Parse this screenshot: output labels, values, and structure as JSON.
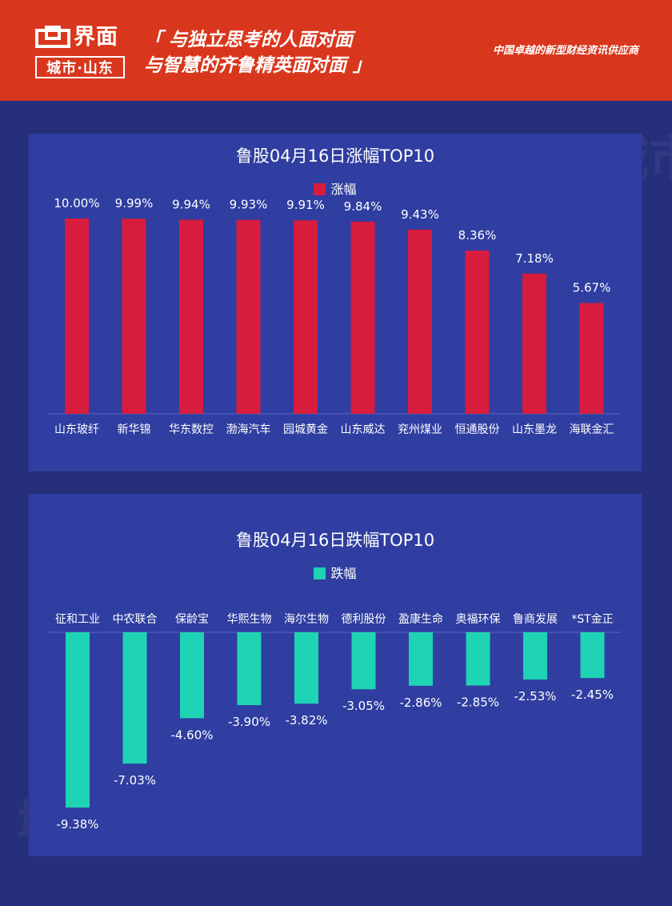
{
  "header": {
    "brand": "界面",
    "brand_sub": "城市·山东",
    "slogan_line1": "「 与独立思考的人面对面",
    "slogan_line2": "与智慧的齐鲁精英面对面 」",
    "tagline": "中国卓越的新型财经资讯供应商",
    "watermark": "界面 城市·山东"
  },
  "chart_data": [
    {
      "type": "bar",
      "title": "鲁股04月16日涨幅TOP10",
      "legend": "涨幅",
      "color": "#d71c3d",
      "categories": [
        "山东玻纤",
        "新华锦",
        "华东数控",
        "渤海汽车",
        "园城黄金",
        "山东威达",
        "兖州煤业",
        "恒通股份",
        "山东墨龙",
        "海联金汇"
      ],
      "values": [
        10.0,
        9.99,
        9.94,
        9.93,
        9.91,
        9.84,
        9.43,
        8.36,
        7.18,
        5.67
      ],
      "labels": [
        "10.00%",
        "9.99%",
        "9.94%",
        "9.93%",
        "9.91%",
        "9.84%",
        "9.43%",
        "8.36%",
        "7.18%",
        "5.67%"
      ],
      "ylim": [
        0,
        10
      ]
    },
    {
      "type": "bar",
      "title": "鲁股04月16日跌幅TOP10",
      "legend": "跌幅",
      "color": "#1fd3b5",
      "categories": [
        "征和工业",
        "中农联合",
        "保龄宝",
        "华熙生物",
        "海尔生物",
        "德利股份",
        "盈康生命",
        "奥福环保",
        "鲁商发展",
        "*ST金正"
      ],
      "values": [
        -9.38,
        -7.03,
        -4.6,
        -3.9,
        -3.82,
        -3.05,
        -2.86,
        -2.85,
        -2.53,
        -2.45
      ],
      "labels": [
        "-9.38%",
        "-7.03%",
        "-4.60%",
        "-3.90%",
        "-3.82%",
        "-3.05%",
        "-2.86%",
        "-2.85%",
        "-2.53%",
        "-2.45%"
      ],
      "ylim": [
        -9.38,
        0
      ]
    }
  ]
}
